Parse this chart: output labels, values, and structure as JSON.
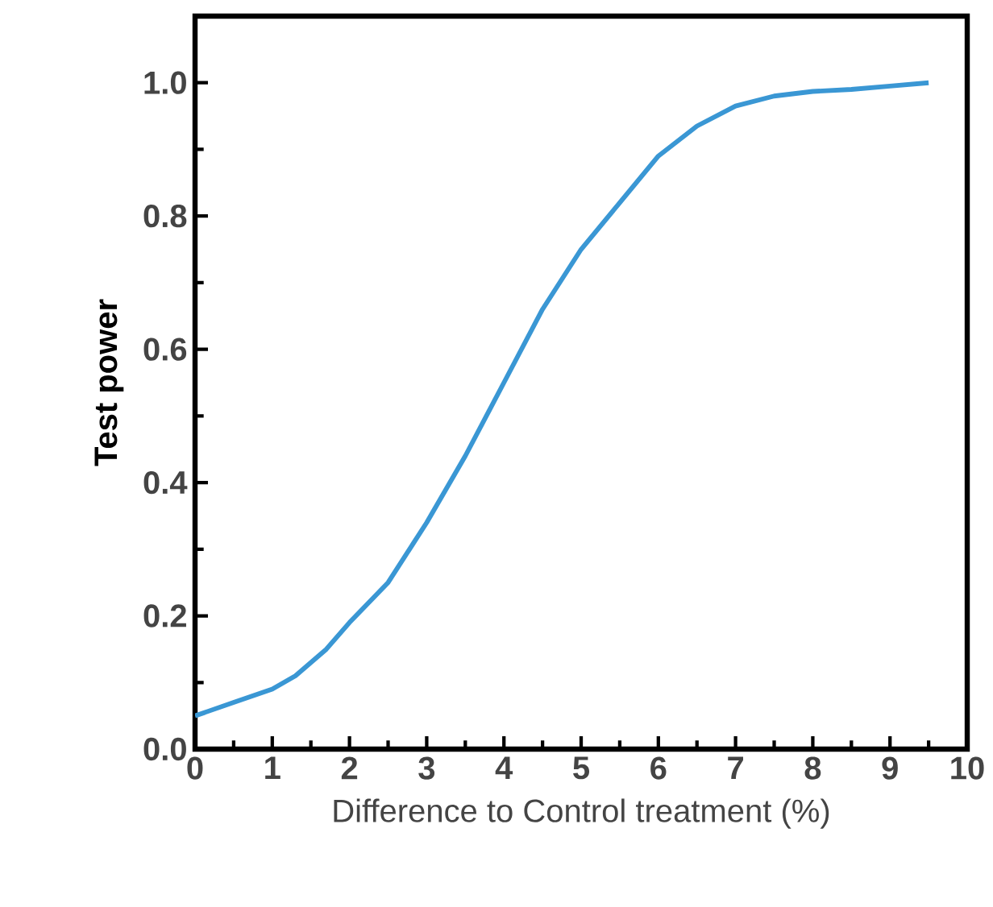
{
  "chart_data": {
    "type": "line",
    "xlabel": "Difference to Control treatment (%)",
    "ylabel": "Test power",
    "x": [
      0,
      0.5,
      1,
      1.3,
      1.7,
      2,
      2.5,
      3,
      3.5,
      4,
      4.5,
      5,
      5.5,
      6,
      6.5,
      7,
      7.5,
      8,
      8.5,
      9,
      9.5
    ],
    "series": [
      {
        "color": "#3a97d4",
        "values": [
          0.05,
          0.07,
          0.09,
          0.11,
          0.15,
          0.19,
          0.25,
          0.34,
          0.44,
          0.55,
          0.66,
          0.75,
          0.82,
          0.89,
          0.935,
          0.965,
          0.98,
          0.987,
          0.99,
          0.995,
          1.0
        ]
      }
    ],
    "xlim": [
      0,
      10
    ],
    "ylim": [
      0,
      1.1
    ],
    "xticks": [
      0,
      1,
      2,
      3,
      4,
      5,
      6,
      7,
      8,
      9,
      10
    ],
    "yticks": [
      {
        "value": 0,
        "label": "0.0"
      },
      {
        "value": 0.2,
        "label": "0.2"
      },
      {
        "value": 0.4,
        "label": "0.4"
      },
      {
        "value": 0.6,
        "label": "0.6"
      },
      {
        "value": 0.8,
        "label": "0.8"
      },
      {
        "value": 1.0,
        "label": "1.0"
      }
    ],
    "marker": "none",
    "line_style": "solid"
  }
}
